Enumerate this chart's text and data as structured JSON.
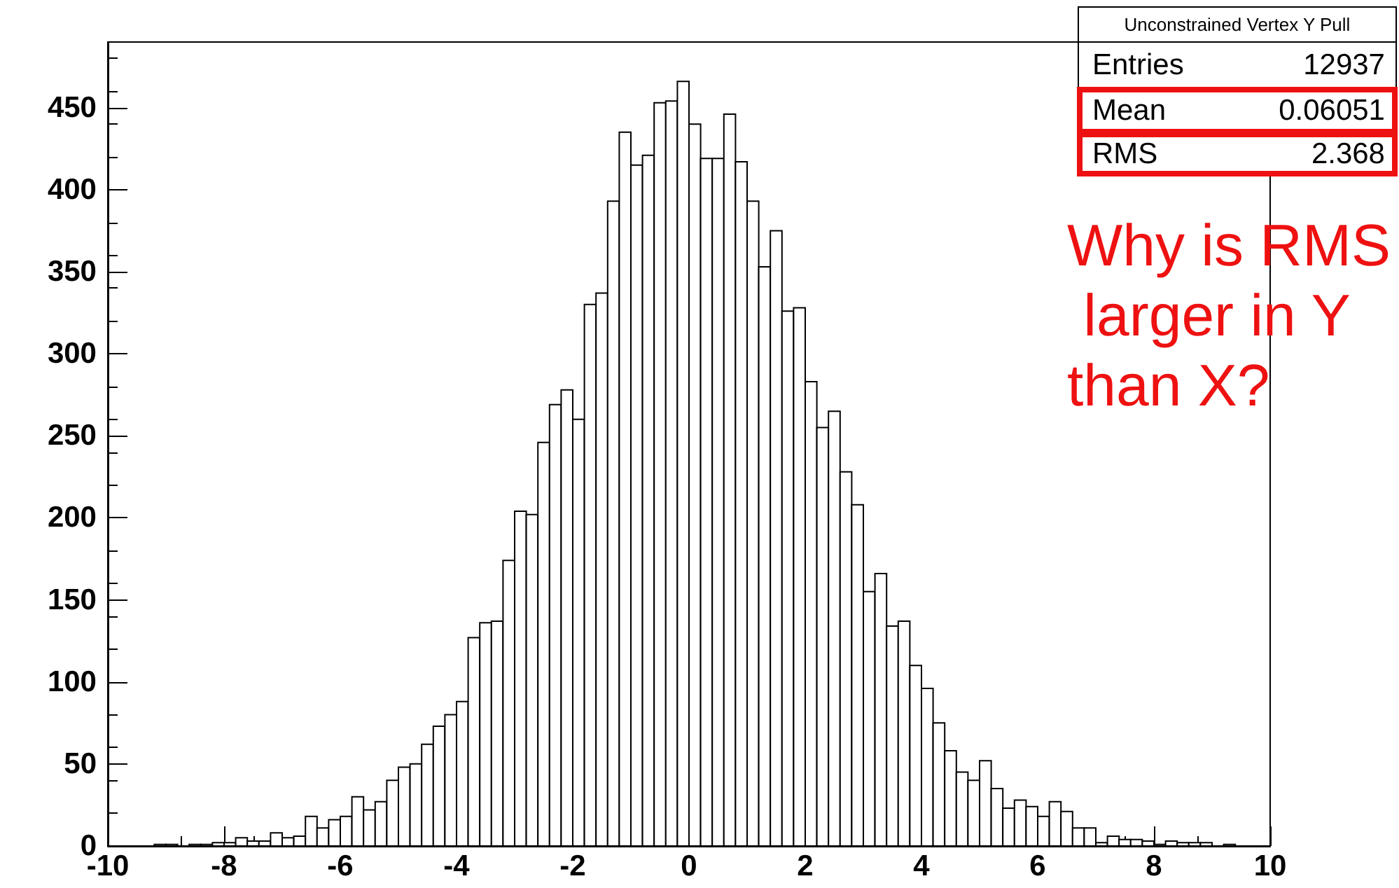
{
  "chart_data": {
    "type": "histogram",
    "title": "Unconstrained Vertex Y Pull",
    "bins": [
      -10,
      -9.8,
      -9.6,
      -9.4,
      -9.2,
      -9,
      -8.8,
      -8.6,
      -8.4,
      -8.2,
      -8,
      -7.8,
      -7.6,
      -7.4,
      -7.2,
      -7,
      -6.8,
      -6.6,
      -6.4,
      -6.2,
      -6,
      -5.8,
      -5.6,
      -5.4,
      -5.2,
      -5,
      -4.8,
      -4.6,
      -4.4,
      -4.2,
      -4,
      -3.8,
      -3.6,
      -3.4,
      -3.2,
      -3,
      -2.8,
      -2.6,
      -2.4,
      -2.2,
      -2,
      -1.8,
      -1.6,
      -1.4,
      -1.2,
      -1,
      -0.8,
      -0.6,
      -0.4,
      -0.2,
      0,
      0.2,
      0.4,
      0.6,
      0.8,
      1,
      1.2,
      1.4,
      1.6,
      1.8,
      2,
      2.2,
      2.4,
      2.6,
      2.8,
      3,
      3.2,
      3.4,
      3.6,
      3.8,
      4,
      4.2,
      4.4,
      4.6,
      4.8,
      5,
      5.2,
      5.4,
      5.6,
      5.8,
      6,
      6.2,
      6.4,
      6.6,
      6.8,
      7,
      7.2,
      7.4,
      7.6,
      7.8,
      8,
      8.2,
      8.4,
      8.6,
      8.8,
      9,
      9.2,
      9.4,
      9.6,
      9.8,
      10
    ],
    "values": [
      0,
      0,
      0,
      0,
      1,
      1,
      0,
      1,
      1,
      2,
      2,
      5,
      3,
      3,
      8,
      5,
      6,
      18,
      11,
      16,
      18,
      30,
      22,
      27,
      40,
      48,
      50,
      62,
      73,
      80,
      88,
      127,
      136,
      137,
      174,
      204,
      202,
      246,
      269,
      278,
      260,
      330,
      337,
      393,
      435,
      415,
      421,
      453,
      454,
      466,
      440,
      419,
      419,
      446,
      417,
      393,
      353,
      375,
      326,
      328,
      283,
      255,
      265,
      228,
      208,
      155,
      166,
      134,
      137,
      110,
      96,
      75,
      58,
      45,
      40,
      52,
      35,
      23,
      28,
      24,
      18,
      27,
      21,
      11,
      11,
      2,
      6,
      4,
      4,
      3,
      1,
      3,
      2,
      2,
      2,
      0,
      1,
      0,
      0,
      0
    ],
    "color": "#000000",
    "xlim": [
      -10,
      10
    ],
    "xticks": [
      -10,
      -8,
      -6,
      -4,
      -2,
      0,
      2,
      4,
      6,
      8,
      10
    ],
    "ylim": [
      0,
      490
    ],
    "yticks": [
      0,
      50,
      100,
      150,
      200,
      250,
      300,
      350,
      400,
      450
    ],
    "grid": false,
    "annotations": [
      "Entries",
      "12937",
      "Mean",
      "0.06051",
      "RMS",
      "2.368",
      "Why is RMS larger in Y than X?"
    ]
  }
}
